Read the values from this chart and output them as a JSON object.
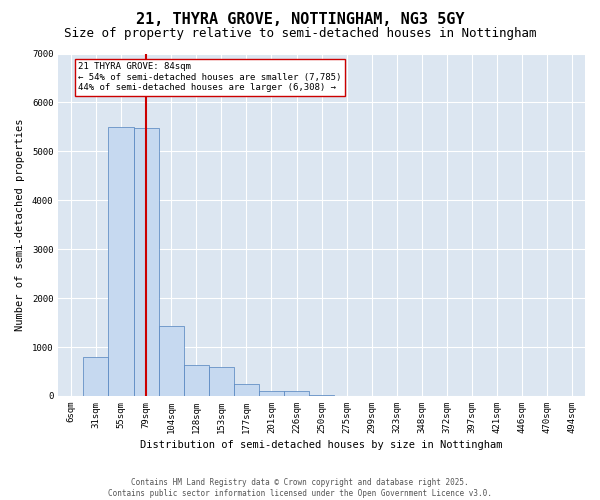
{
  "title": "21, THYRA GROVE, NOTTINGHAM, NG3 5GY",
  "subtitle": "Size of property relative to semi-detached houses in Nottingham",
  "xlabel": "Distribution of semi-detached houses by size in Nottingham",
  "ylabel": "Number of semi-detached properties",
  "footer": "Contains HM Land Registry data © Crown copyright and database right 2025.\nContains public sector information licensed under the Open Government Licence v3.0.",
  "bins": [
    "6sqm",
    "31sqm",
    "55sqm",
    "79sqm",
    "104sqm",
    "128sqm",
    "153sqm",
    "177sqm",
    "201sqm",
    "226sqm",
    "250sqm",
    "275sqm",
    "299sqm",
    "323sqm",
    "348sqm",
    "372sqm",
    "397sqm",
    "421sqm",
    "446sqm",
    "470sqm",
    "494sqm"
  ],
  "values": [
    5,
    800,
    5500,
    5480,
    1420,
    625,
    590,
    250,
    105,
    100,
    10,
    5,
    2,
    2,
    1,
    1,
    1,
    0,
    0,
    0,
    0
  ],
  "bar_color": "#c6d9f0",
  "bar_edge_color": "#4f81bd",
  "bar_linewidth": 0.5,
  "vline_bin_index": 3,
  "vline_color": "#cc0000",
  "vline_linewidth": 1.5,
  "annotation_line1": "21 THYRA GROVE: 84sqm",
  "annotation_line2": "← 54% of semi-detached houses are smaller (7,785)",
  "annotation_line3": "44% of semi-detached houses are larger (6,308) →",
  "annotation_box_facecolor": "white",
  "annotation_box_edgecolor": "#cc0000",
  "ylim_max": 7000,
  "yticks": [
    0,
    1000,
    2000,
    3000,
    4000,
    5000,
    6000,
    7000
  ],
  "plot_bg_color": "#dce6f1",
  "grid_color": "white",
  "title_fontsize": 11,
  "subtitle_fontsize": 9,
  "axis_label_fontsize": 7.5,
  "tick_fontsize": 6.5,
  "annotation_fontsize": 6.5,
  "footer_fontsize": 5.5
}
